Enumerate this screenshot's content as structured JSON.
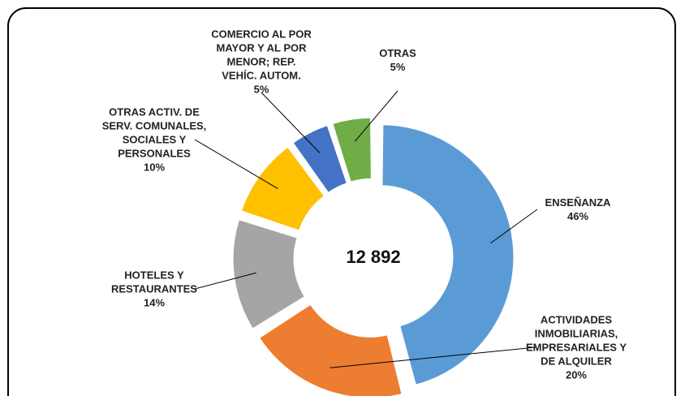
{
  "chart_data": {
    "type": "donut",
    "center_label": "12 892",
    "categories": [
      "ENSEÑANZA",
      "ACTIVIDADES\nINMOBILIARIAS,\nEMPRESARIALES Y\nDE ALQUILER",
      "HOTELES Y\nRESTAURANTES",
      "OTRAS ACTIV. DE\nSERV. COMUNALES,\nSOCIALES Y\nPERSONALES",
      "COMERCIO AL POR\nMAYOR Y AL POR\nMENOR; REP.\nVEHÍC. AUTOM.",
      "OTRAS"
    ],
    "values": [
      46,
      20,
      14,
      10,
      5,
      5
    ],
    "value_labels": [
      "46%",
      "20%",
      "14%",
      "10%",
      "5%",
      "5%"
    ],
    "colors": [
      "#5b9bd5",
      "#ed7d31",
      "#a5a5a5",
      "#ffc000",
      "#4472c4",
      "#70ad47"
    ]
  }
}
